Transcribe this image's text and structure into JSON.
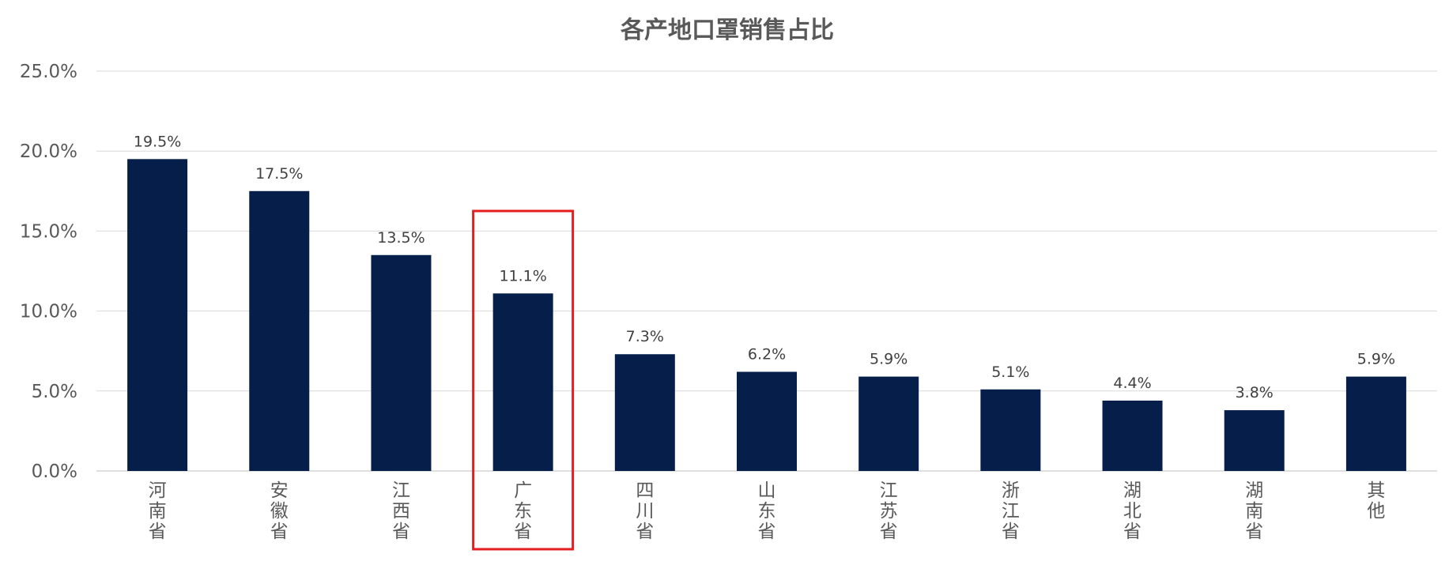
{
  "chart_data": {
    "type": "bar",
    "title": "各产地口罩销售占比",
    "categories": [
      "河南省",
      "安徽省",
      "江西省",
      "广东省",
      "四川省",
      "山东省",
      "江苏省",
      "浙江省",
      "湖北省",
      "湖南省",
      "其他"
    ],
    "values": [
      19.5,
      17.5,
      13.5,
      11.1,
      7.3,
      6.2,
      5.9,
      5.1,
      4.4,
      3.8,
      5.9
    ],
    "data_labels": [
      "19.5%",
      "17.5%",
      "13.5%",
      "11.1%",
      "7.3%",
      "6.2%",
      "5.9%",
      "5.1%",
      "4.4%",
      "3.8%",
      "5.9%"
    ],
    "yticks": [
      "0.0%",
      "5.0%",
      "10.0%",
      "15.0%",
      "20.0%",
      "25.0%"
    ],
    "ylim": [
      0,
      25
    ],
    "xlabel": "",
    "ylabel": "",
    "grid": true,
    "legend": "none",
    "highlighted_category": "广东省",
    "colors": {
      "bar": "#051E4A",
      "highlight_box": "#E41E1E",
      "grid": "#D9D9D9"
    }
  }
}
